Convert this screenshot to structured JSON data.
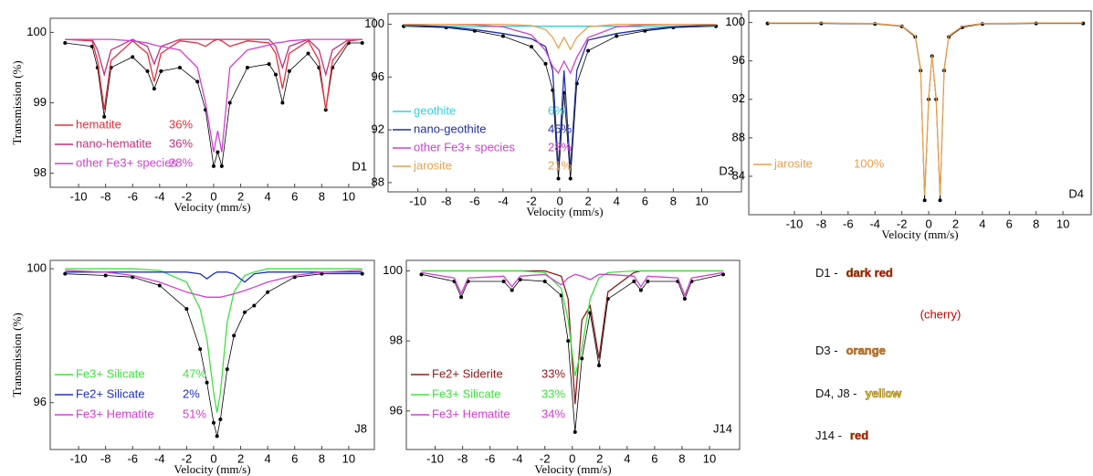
{
  "chart_data": [
    {
      "type": "line",
      "annotation": "D1",
      "xlabel": "Velocity (mm/s)",
      "ylabel": "Transmission (%)",
      "xlim": [
        -12.1,
        11.9
      ],
      "ylim": [
        97.8,
        100.2
      ],
      "xticks": [
        -10,
        -8,
        -6,
        -4,
        -2,
        0,
        2,
        4,
        6,
        8,
        10
      ],
      "yticks": [
        98,
        99,
        100
      ],
      "x": [
        -11,
        -9,
        -8.6,
        -8.1,
        -7.6,
        -6,
        -4.9,
        -4.4,
        -3.9,
        -2.5,
        -1.2,
        -0.6,
        0,
        0.3,
        0.6,
        1.2,
        2.5,
        4.1,
        4.6,
        5.1,
        5.6,
        7,
        7.8,
        8.3,
        8.8,
        10,
        11
      ],
      "series": [
        {
          "color": "#000000",
          "markers": true,
          "values": [
            99.85,
            99.8,
            99.5,
            98.8,
            99.5,
            99.65,
            99.45,
            99.2,
            99.45,
            99.5,
            99.3,
            98.9,
            98.1,
            98.3,
            98.1,
            99.0,
            99.5,
            99.55,
            99.4,
            99.0,
            99.45,
            99.7,
            99.5,
            98.9,
            99.5,
            99.85,
            99.85
          ]
        },
        {
          "name": "hematite",
          "share": "36%",
          "color": "#e0303a",
          "values": [
            99.9,
            99.88,
            99.6,
            98.9,
            99.6,
            99.88,
            99.7,
            99.3,
            99.7,
            99.88,
            99.85,
            99.8,
            99.88,
            99.9,
            99.88,
            99.8,
            99.88,
            99.85,
            99.7,
            99.2,
            99.7,
            99.88,
            99.6,
            98.9,
            99.6,
            99.88,
            99.9
          ]
        },
        {
          "name": "nano-hematite",
          "share": "36%",
          "color": "#c0307a",
          "values": [
            99.9,
            99.9,
            99.75,
            99.4,
            99.75,
            99.9,
            99.8,
            99.55,
            99.8,
            99.9,
            99.9,
            99.9,
            99.9,
            99.9,
            99.9,
            99.9,
            99.9,
            99.9,
            99.8,
            99.5,
            99.8,
            99.9,
            99.75,
            99.4,
            99.75,
            99.9,
            99.9
          ]
        },
        {
          "name": "other Fe3+ species",
          "share": "28%",
          "color": "#d040d0",
          "values": [
            99.9,
            99.9,
            99.9,
            99.9,
            99.9,
            99.88,
            99.85,
            99.82,
            99.8,
            99.75,
            99.5,
            99.0,
            98.3,
            98.6,
            98.3,
            99.5,
            99.75,
            99.82,
            99.85,
            99.86,
            99.88,
            99.9,
            99.9,
            99.9,
            99.9,
            99.9,
            99.9
          ]
        }
      ]
    },
    {
      "type": "line",
      "annotation": "D3",
      "xlabel": "Velocity (mm/s)",
      "xlim": [
        -12.1,
        12.8
      ],
      "ylim": [
        87.3,
        100.8
      ],
      "xticks": [
        -10,
        -8,
        -6,
        -4,
        -2,
        0,
        2,
        4,
        6,
        8,
        10
      ],
      "yticks": [
        88,
        92,
        96,
        100
      ],
      "x": [
        -11,
        -8,
        -6,
        -4,
        -2,
        -1,
        -0.5,
        -0.1,
        0.3,
        0.75,
        1.2,
        2,
        4,
        6,
        8,
        11
      ],
      "series": [
        {
          "color": "#000000",
          "markers": true,
          "values": [
            99.85,
            99.75,
            99.5,
            99.1,
            98.3,
            97.0,
            95.0,
            88.3,
            94.8,
            88.3,
            95.5,
            98.0,
            99.1,
            99.5,
            99.75,
            99.85
          ]
        },
        {
          "name": "geothite",
          "share": "6%",
          "color": "#30d0e0",
          "values": [
            99.9,
            99.85,
            99.8,
            99.85,
            99.85,
            99.85,
            99.85,
            99.85,
            99.85,
            99.85,
            99.85,
            99.85,
            99.85,
            99.8,
            99.85,
            99.9
          ]
        },
        {
          "name": "nano-geothite",
          "share": "45%",
          "color": "#2030a0",
          "values": [
            99.95,
            99.8,
            99.6,
            99.3,
            98.9,
            98.3,
            96.5,
            89,
            96.5,
            89,
            96.5,
            98.8,
            99.3,
            99.6,
            99.8,
            99.95
          ]
        },
        {
          "name": "other Fe3+ species",
          "share": "28%",
          "color": "#d040d0",
          "values": [
            100,
            100,
            99.95,
            99.8,
            99.2,
            98.0,
            96.8,
            96.3,
            97.2,
            96.3,
            97.5,
            99.0,
            99.8,
            99.95,
            100,
            100
          ]
        },
        {
          "name": "jarosite",
          "share": "21%",
          "color": "#e8a050",
          "values": [
            100,
            100,
            100,
            100,
            99.9,
            99.6,
            99.0,
            98.2,
            99.0,
            98.1,
            99.0,
            99.8,
            100,
            100,
            100,
            100
          ]
        }
      ]
    },
    {
      "type": "line",
      "annotation": "D4",
      "xlabel": "Velocity (mm/s)",
      "xlim": [
        -13.4,
        12.1
      ],
      "ylim": [
        80,
        101.2
      ],
      "xticks": [
        -10,
        -8,
        -6,
        -4,
        -2,
        0,
        2,
        4,
        6,
        8,
        10
      ],
      "yticks": [
        84,
        88,
        92,
        96,
        100
      ],
      "x": [
        -12,
        -8,
        -4,
        -2,
        -1,
        -0.6,
        -0.3,
        0,
        0.25,
        0.55,
        0.85,
        1.15,
        1.5,
        2.5,
        4,
        8,
        11.5
      ],
      "series": [
        {
          "color": "#000000",
          "markers": true,
          "values": [
            99.9,
            99.9,
            99.85,
            99.6,
            98.5,
            95,
            81.5,
            92,
            96.5,
            92,
            81.5,
            95,
            98.5,
            99.5,
            99.85,
            99.9,
            99.9
          ]
        },
        {
          "name": "jarosite",
          "share": "100%",
          "color": "#e8a050",
          "values": [
            99.95,
            99.95,
            99.9,
            99.65,
            98.6,
            95.2,
            82,
            92.3,
            96.6,
            92.3,
            82,
            95.2,
            98.6,
            99.6,
            99.9,
            99.95,
            99.95
          ]
        }
      ]
    },
    {
      "type": "line",
      "annotation": "J8",
      "xlabel": "Velocity (mm/s)",
      "ylabel": "Transmission (%)",
      "xlim": [
        -12.1,
        11.9
      ],
      "ylim": [
        94.6,
        100.25
      ],
      "xticks": [
        -10,
        -8,
        -6,
        -4,
        -2,
        0,
        2,
        4,
        6,
        8,
        10
      ],
      "yticks": [
        96,
        100
      ],
      "x": [
        -11,
        -8,
        -6,
        -4,
        -2,
        -1,
        -0.5,
        0,
        0.25,
        0.5,
        1,
        1.5,
        2.3,
        3,
        4,
        6,
        8,
        11
      ],
      "series": [
        {
          "color": "#000000",
          "markers": true,
          "values": [
            99.85,
            99.8,
            99.75,
            99.5,
            98.8,
            97.6,
            96.6,
            95.4,
            95.0,
            95.5,
            97.0,
            98.0,
            98.7,
            98.9,
            99.3,
            99.75,
            99.85,
            99.85
          ]
        },
        {
          "name": "Fe3+ Silicate",
          "share": "47%",
          "color": "#40e040",
          "values": [
            100,
            100,
            100,
            99.95,
            99.6,
            98.8,
            97.9,
            96.3,
            95.7,
            96.3,
            98.4,
            99.3,
            99.8,
            99.9,
            100,
            100,
            100,
            100
          ]
        },
        {
          "name": "Fe2+ Silicate",
          "share": "2%",
          "color": "#2030c0",
          "values": [
            99.9,
            99.9,
            99.9,
            99.9,
            99.9,
            99.85,
            99.7,
            99.85,
            99.9,
            99.9,
            99.9,
            99.85,
            99.6,
            99.85,
            99.9,
            99.9,
            99.9,
            99.9
          ]
        },
        {
          "name": "Fe3+ Hematite",
          "share": "51%",
          "color": "#d040d0",
          "values": [
            99.95,
            99.9,
            99.8,
            99.6,
            99.3,
            99.2,
            99.15,
            99.15,
            99.15,
            99.15,
            99.2,
            99.25,
            99.35,
            99.45,
            99.6,
            99.8,
            99.9,
            99.95
          ]
        }
      ]
    },
    {
      "type": "line",
      "annotation": "J14",
      "xlabel": "Velocity (mm/s)",
      "xlim": [
        -12.1,
        12.2
      ],
      "ylim": [
        94.9,
        100.3
      ],
      "xticks": [
        -10,
        -8,
        -6,
        -4,
        -2,
        0,
        2,
        4,
        6,
        8,
        10
      ],
      "yticks": [
        96,
        98,
        100
      ],
      "x": [
        -11,
        -8.6,
        -8.1,
        -7.6,
        -5,
        -4.4,
        -3.8,
        -2,
        -0.8,
        -0.3,
        0.2,
        0.7,
        1.3,
        1.95,
        2.6,
        4.5,
        5.0,
        5.5,
        7.7,
        8.2,
        8.7,
        11
      ],
      "series": [
        {
          "color": "#000000",
          "markers": true,
          "values": [
            99.9,
            99.7,
            99.25,
            99.7,
            99.7,
            99.45,
            99.75,
            99.7,
            99.3,
            98.0,
            95.4,
            97.5,
            98.8,
            97.3,
            99.2,
            99.7,
            99.45,
            99.7,
            99.7,
            99.2,
            99.7,
            99.9
          ]
        },
        {
          "name": "Fe2+ Siderite",
          "share": "33%",
          "color": "#8b1a1a",
          "values": [
            100,
            100,
            100,
            100,
            100,
            100,
            100,
            100,
            99.85,
            99.2,
            96.2,
            98.6,
            99.0,
            97.5,
            99.4,
            99.95,
            100,
            100,
            100,
            100,
            100,
            100
          ]
        },
        {
          "name": "Fe3+ Silicate",
          "share": "33%",
          "color": "#40e040",
          "values": [
            100,
            100,
            100,
            100,
            100,
            100,
            100,
            99.95,
            99.5,
            98.6,
            97.0,
            97.8,
            99.2,
            99.8,
            99.95,
            100,
            100,
            100,
            100,
            100,
            100,
            100
          ]
        },
        {
          "name": "Fe3+ Hematite",
          "share": "34%",
          "color": "#d040d0",
          "values": [
            99.95,
            99.8,
            99.35,
            99.8,
            99.85,
            99.55,
            99.85,
            99.9,
            99.6,
            99.8,
            99.9,
            99.85,
            99.75,
            99.9,
            99.9,
            99.85,
            99.55,
            99.85,
            99.8,
            99.3,
            99.8,
            99.95
          ]
        }
      ]
    }
  ],
  "color_key": [
    {
      "label": "D1 -",
      "color_name": "dark red",
      "note": "(cherry)",
      "color": "#c00000"
    },
    {
      "label": "D3 -",
      "color_name": "orange",
      "color": "#e07a20"
    },
    {
      "label": "D4, J8 -",
      "color_name": "yellow",
      "color": "#f0e820"
    },
    {
      "label": "J14 -",
      "color_name": "red",
      "color": "#d40000"
    }
  ]
}
